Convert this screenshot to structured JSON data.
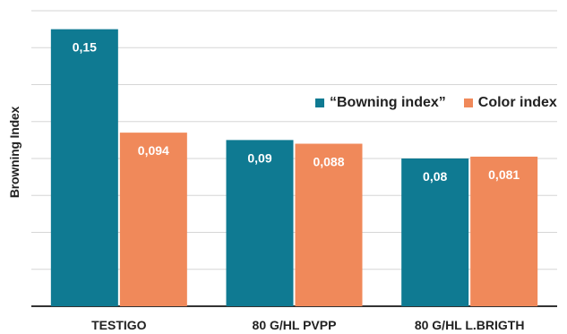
{
  "chart_data": {
    "type": "bar",
    "ylabel": "Browning Index",
    "categories": [
      "TESTIGO",
      "80 G/HL PVPP",
      "80 G/HL L.BRIGTH"
    ],
    "series": [
      {
        "name": "“Bowning index”",
        "values": [
          0.15,
          0.09,
          0.08
        ],
        "labels": [
          "0,15",
          "0,09",
          "0,08"
        ],
        "color": "#0F7A92"
      },
      {
        "name": "Color index",
        "values": [
          0.094,
          0.088,
          0.081
        ],
        "labels": [
          "0,094",
          "0,088",
          "0,081"
        ],
        "color": "#F0895A"
      }
    ],
    "ylim": [
      0,
      0.16
    ],
    "grid": true,
    "legend": "top-right"
  }
}
